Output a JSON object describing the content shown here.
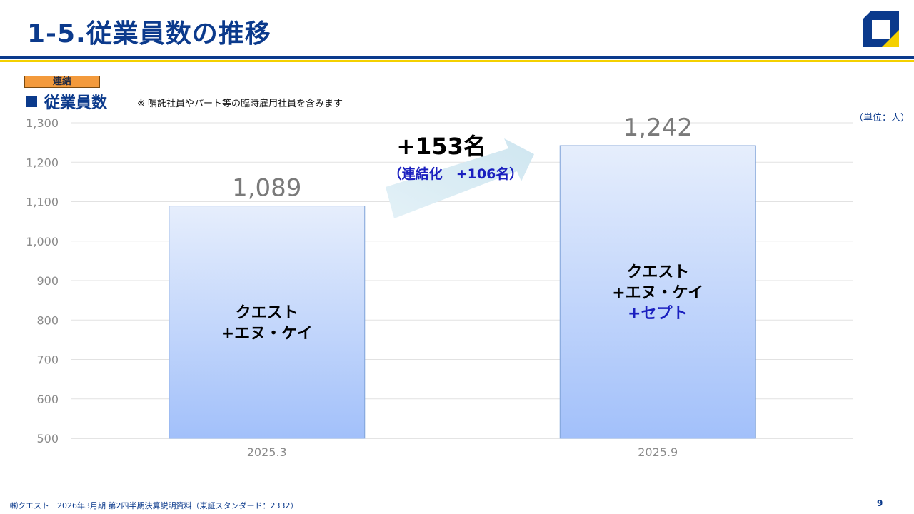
{
  "header": {
    "title": "1-5.従業員数の推移"
  },
  "section": {
    "badge": "連結",
    "title": "従業員数",
    "note": "※ 嘱託社員やパート等の臨時雇用社員を含みます",
    "unit": "（単位：人）"
  },
  "callout": {
    "main": "+153名",
    "sub": "（連結化　+106名）"
  },
  "bar_labels": [
    {
      "line1": "クエスト",
      "line2": "+エヌ・ケイ",
      "line3": ""
    },
    {
      "line1": "クエスト",
      "line2": "+エヌ・ケイ",
      "line3": "+セプト"
    }
  ],
  "colors": {
    "brand_blue": "#0b3a8c",
    "accent_yellow": "#f4d000",
    "badge_orange": "#f39a3c",
    "bar_top": "#e6eefc",
    "bar_bottom": "#a2c0fa",
    "highlight_text": "#1a1fbf"
  },
  "chart_data": {
    "type": "bar",
    "categories": [
      "2025.3",
      "2025.9"
    ],
    "values": [
      1089,
      1242
    ],
    "data_labels": [
      "1,089",
      "1,242"
    ],
    "ylim": [
      500,
      1300
    ],
    "yticks": [
      500,
      600,
      700,
      800,
      900,
      1000,
      1100,
      1200,
      1300
    ],
    "ytick_labels": [
      "500",
      "600",
      "700",
      "800",
      "900",
      "1,000",
      "1,100",
      "1,200",
      "1,300"
    ],
    "grid": true
  },
  "footer": {
    "text": "㈱クエスト　2026年3月期 第2四半期決算説明資料（東証スタンダード：2332）",
    "page": "9"
  }
}
